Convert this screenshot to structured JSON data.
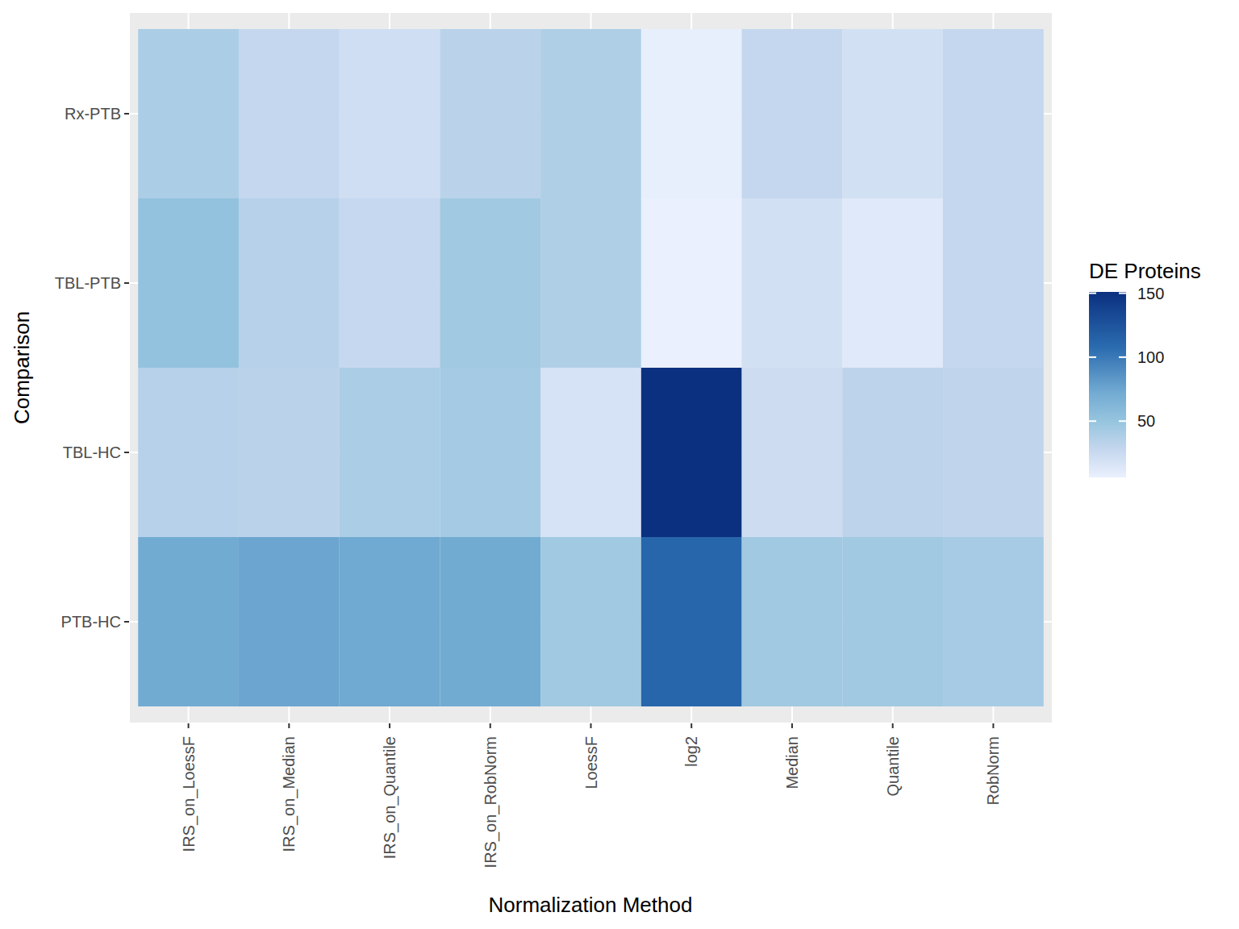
{
  "chart_data": {
    "type": "heatmap",
    "x_label": "Normalization Method",
    "y_label": "Comparison",
    "x_categories": [
      "IRS_on_LoessF",
      "IRS_on_Median",
      "IRS_on_Quantile",
      "IRS_on_RobNorm",
      "LoessF",
      "log2",
      "Median",
      "Quantile",
      "RobNorm"
    ],
    "y_categories": [
      "Rx-PTB",
      "TBL-PTB",
      "TBL-HC",
      "PTB-HC"
    ],
    "cells": [
      [
        40,
        28,
        22,
        33,
        38,
        7,
        28,
        20,
        28
      ],
      [
        52,
        35,
        27,
        45,
        38,
        6,
        20,
        12,
        28
      ],
      [
        35,
        33,
        40,
        43,
        18,
        151,
        23,
        32,
        30
      ],
      [
        72,
        75,
        73,
        72,
        45,
        112,
        45,
        45,
        42
      ]
    ],
    "colorbar": {
      "title": "DE Proteins",
      "range": [
        6,
        151
      ],
      "ticks": [
        50,
        100,
        150
      ]
    },
    "grid": true
  }
}
